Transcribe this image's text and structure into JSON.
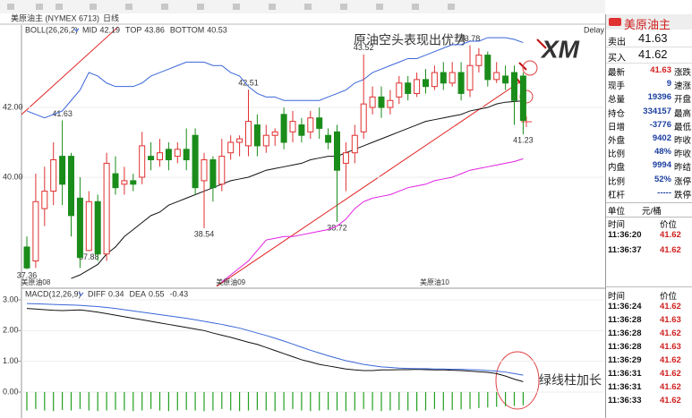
{
  "chart_data": [
    {
      "type": "candlestick",
      "title": "美原油主 (NYMEX 6713)",
      "period": "日线",
      "indicator": "BOLL(26,26,2)",
      "logo": "XM",
      "delay": "Delay",
      "annotation": "原油空头表现出优势",
      "up_color": "#e03030",
      "down_color": "#1a8c1a",
      "categories": [
        null,
        "美原油08",
        null,
        null,
        null,
        null,
        null,
        null,
        null,
        null,
        null,
        null,
        null,
        null,
        null,
        null,
        null,
        null,
        null,
        null,
        null,
        null,
        null,
        "美原油09",
        null,
        null,
        null,
        null,
        null,
        null,
        null,
        null,
        null,
        null,
        null,
        null,
        null,
        null,
        null,
        null,
        null,
        null,
        null,
        null,
        null,
        null,
        "美原油10",
        null,
        null,
        null,
        null,
        null,
        null,
        null,
        null,
        null,
        null
      ],
      "open": [
        38.0,
        37.6,
        39.1,
        39.6,
        40.6,
        40.6,
        39.4,
        37.9,
        39.3,
        37.8,
        40.1,
        39.8,
        39.9,
        40.0,
        40.6,
        40.5,
        40.8,
        40.6,
        40.8,
        41.2,
        39.9,
        40.5,
        39.8,
        40.7,
        41.0,
        40.9,
        41.5,
        40.9,
        41.2,
        41.8,
        41.3,
        41.5,
        41.3,
        41.7,
        41.2,
        41.3,
        40.4,
        40.7,
        41.3,
        42.0,
        42.3,
        42.0,
        42.3,
        42.7,
        42.4,
        42.8,
        42.6,
        43.0,
        42.7,
        43.0,
        42.5,
        43.2,
        43.5,
        42.8,
        42.9,
        43.0,
        42.9
      ],
      "high": [
        38.3,
        40.1,
        40.3,
        41.0,
        41.63,
        40.7,
        40.0,
        39.6,
        39.5,
        40.7,
        40.6,
        40.3,
        40.1,
        41.3,
        41.0,
        41.1,
        41.0,
        41.0,
        41.4,
        41.4,
        40.7,
        40.6,
        41.1,
        41.2,
        41.2,
        42.51,
        41.8,
        41.5,
        41.4,
        42.0,
        41.9,
        41.7,
        41.9,
        42.0,
        41.4,
        41.5,
        41.0,
        41.5,
        43.52,
        42.6,
        42.6,
        42.5,
        42.9,
        42.9,
        43.0,
        43.1,
        43.2,
        43.3,
        43.3,
        43.3,
        43.78,
        43.7,
        43.6,
        43.3,
        43.2,
        43.2,
        43.0
      ],
      "low": [
        37.36,
        37.4,
        38.6,
        39.2,
        39.2,
        38.3,
        37.4,
        37.88,
        37.6,
        37.6,
        39.5,
        39.5,
        39.6,
        39.8,
        40.2,
        40.3,
        40.2,
        40.4,
        40.2,
        39.5,
        38.54,
        39.3,
        39.6,
        40.5,
        40.6,
        40.6,
        40.6,
        40.7,
        40.9,
        40.8,
        41.0,
        41.0,
        41.1,
        41.1,
        40.8,
        38.72,
        39.6,
        40.4,
        41.1,
        41.8,
        41.7,
        41.8,
        42.1,
        42.2,
        42.3,
        42.4,
        42.5,
        42.5,
        42.6,
        42.2,
        42.3,
        43.0,
        42.6,
        42.7,
        42.5,
        41.5,
        41.23
      ],
      "close": [
        37.4,
        39.3,
        39.6,
        40.5,
        39.8,
        38.9,
        37.7,
        39.3,
        37.8,
        40.4,
        39.7,
        39.9,
        39.8,
        40.9,
        40.5,
        40.7,
        40.5,
        40.8,
        40.5,
        39.7,
        40.5,
        39.7,
        40.6,
        41.0,
        41.1,
        41.6,
        40.9,
        41.2,
        41.3,
        41.0,
        41.6,
        41.2,
        41.7,
        41.4,
        41.0,
        40.2,
        40.7,
        41.2,
        42.1,
        42.3,
        42.0,
        42.2,
        42.7,
        42.4,
        42.8,
        42.6,
        43.0,
        42.7,
        43.0,
        42.4,
        43.2,
        43.5,
        42.8,
        43.0,
        42.7,
        42.2,
        41.63
      ],
      "series": [
        {
          "name": "MID",
          "color": "#111111",
          "values": [
            null,
            null,
            null,
            null,
            null,
            37.1,
            37.2,
            37.35,
            37.5,
            37.8,
            38.0,
            38.3,
            38.5,
            38.7,
            38.9,
            39.0,
            39.2,
            39.3,
            39.4,
            39.5,
            39.6,
            39.7,
            39.8,
            39.9,
            39.95,
            40.0,
            40.1,
            40.2,
            40.25,
            40.3,
            40.35,
            40.4,
            40.5,
            40.55,
            40.6,
            40.6,
            40.7,
            40.8,
            40.9,
            41.0,
            41.1,
            41.2,
            41.3,
            41.4,
            41.5,
            41.6,
            41.65,
            41.7,
            41.75,
            41.8,
            41.9,
            41.95,
            42.0,
            42.1,
            42.15,
            42.17,
            42.19
          ]
        },
        {
          "name": "TOP",
          "color": "#3a66d8",
          "values": [
            41.9,
            41.8,
            41.7,
            41.8,
            41.9,
            42.2,
            42.5,
            43.0,
            42.9,
            42.7,
            42.6,
            42.6,
            42.6,
            42.7,
            42.9,
            43.0,
            43.1,
            43.2,
            43.3,
            43.3,
            43.3,
            43.2,
            43.2,
            43.0,
            42.9,
            42.6,
            42.4,
            42.3,
            42.3,
            42.2,
            42.2,
            42.2,
            42.2,
            42.2,
            42.3,
            42.4,
            42.5,
            42.7,
            42.8,
            43.0,
            43.1,
            43.2,
            43.3,
            43.4,
            43.4,
            43.5,
            43.6,
            43.7,
            43.8,
            43.8,
            43.9,
            43.9,
            44.0,
            44.0,
            44.0,
            43.95,
            43.86
          ]
        },
        {
          "name": "BOTTOM",
          "color": "#e020e0",
          "values": [
            null,
            null,
            null,
            null,
            null,
            null,
            null,
            null,
            null,
            null,
            null,
            null,
            null,
            null,
            null,
            null,
            null,
            null,
            null,
            null,
            null,
            null,
            37.0,
            37.2,
            37.4,
            37.6,
            37.9,
            38.2,
            38.25,
            38.3,
            38.3,
            38.35,
            38.4,
            38.45,
            38.5,
            38.6,
            38.8,
            39.1,
            39.3,
            39.4,
            39.45,
            39.5,
            39.6,
            39.7,
            39.75,
            39.8,
            39.9,
            39.95,
            40.0,
            40.1,
            40.2,
            40.25,
            40.3,
            40.35,
            40.4,
            40.45,
            40.53
          ]
        }
      ],
      "ylim": [
        36.87,
        44.31
      ],
      "yticks": [
        {
          "value": 40,
          "label": "40.00"
        },
        {
          "value": 42,
          "label": "42.00"
        }
      ]
    },
    {
      "type": "macd",
      "annotation": "绿线柱加长",
      "histogram": {
        "name": "MACD(12,26,9)",
        "color": "#22a022",
        "values": [
          -0.6,
          -0.55,
          -0.6,
          -0.62,
          -0.58,
          -0.6,
          -0.55,
          -0.6,
          -0.62,
          -0.6,
          -0.58,
          -0.6,
          -0.62,
          -0.6,
          -0.55,
          -0.6,
          -0.62,
          -0.6,
          -0.58,
          -0.6,
          -0.62,
          -0.6,
          -0.55,
          -0.6,
          -0.62,
          -0.6,
          -0.58,
          -0.6,
          -0.62,
          -0.6,
          -0.55,
          -0.6,
          -0.62,
          -0.6,
          -0.58,
          -0.6,
          -0.62,
          -0.6,
          -0.55,
          -0.6,
          -0.62,
          -0.6,
          -0.58,
          -0.6,
          -0.62,
          -0.6,
          -0.55,
          -0.6,
          -0.58,
          -0.56,
          -0.55,
          -0.52,
          -0.5,
          -0.48,
          -0.46,
          -0.45,
          -0.43
        ]
      },
      "series": [
        {
          "name": "DIFF",
          "color": "#111111",
          "values": [
            2.72,
            2.7,
            2.68,
            2.66,
            2.65,
            2.66,
            2.67,
            2.64,
            2.6,
            2.55,
            2.5,
            2.45,
            2.4,
            2.35,
            2.3,
            2.25,
            2.2,
            2.15,
            2.1,
            2.05,
            2.0,
            1.92,
            1.85,
            1.78,
            1.7,
            1.62,
            1.55,
            1.45,
            1.35,
            1.25,
            1.15,
            1.05,
            0.98,
            0.9,
            0.85,
            0.8,
            0.75,
            0.72,
            0.7,
            0.7,
            0.72,
            0.72,
            0.73,
            0.73,
            0.74,
            0.73,
            0.72,
            0.72,
            0.71,
            0.7,
            0.68,
            0.66,
            0.64,
            0.6,
            0.52,
            0.42,
            0.34
          ]
        },
        {
          "name": "DEA",
          "color": "#3a66d8",
          "values": [
            2.88,
            2.87,
            2.86,
            2.85,
            2.84,
            2.83,
            2.82,
            2.8,
            2.78,
            2.75,
            2.72,
            2.68,
            2.64,
            2.6,
            2.56,
            2.52,
            2.48,
            2.44,
            2.4,
            2.35,
            2.3,
            2.25,
            2.2,
            2.14,
            2.08,
            2.0,
            1.92,
            1.84,
            1.75,
            1.66,
            1.56,
            1.46,
            1.36,
            1.27,
            1.18,
            1.1,
            1.02,
            0.96,
            0.9,
            0.86,
            0.82,
            0.8,
            0.78,
            0.77,
            0.76,
            0.76,
            0.75,
            0.75,
            0.74,
            0.74,
            0.73,
            0.72,
            0.7,
            0.68,
            0.65,
            0.6,
            0.55
          ]
        }
      ],
      "ylim": [
        -0.64,
        3.29
      ],
      "yticks": [
        {
          "value": 0,
          "label": "0.00"
        },
        {
          "value": 1,
          "label": "1.00"
        },
        {
          "value": 2,
          "label": "2.00"
        },
        {
          "value": 3,
          "label": "3.00"
        }
      ]
    }
  ],
  "side_panel": {
    "title": "美原油主",
    "quote": [
      {
        "label": "卖出",
        "value": "41.63"
      },
      {
        "label": "买入",
        "value": "41.62"
      }
    ],
    "stats": [
      [
        "最新",
        "41.63",
        "涨跌"
      ],
      [
        "现手",
        "9",
        "速涨"
      ],
      [
        "总量",
        "19396",
        "开盘"
      ],
      [
        "持仓",
        "334157",
        "最高"
      ],
      [
        "日增",
        "-3776",
        "最低"
      ],
      [
        "外盘",
        "9402",
        "昨收"
      ],
      [
        "比例",
        "48%",
        "昨收"
      ],
      [
        "内盘",
        "9994",
        "昨结"
      ],
      [
        "比例",
        "52%",
        "涨停"
      ],
      [
        "杠杆",
        "-----",
        "跌停"
      ]
    ],
    "unit": [
      "单位",
      "元/桶"
    ],
    "ticks_top": {
      "header": [
        "时间",
        "价位"
      ],
      "rows": [
        [
          "11:36:20",
          "41.62"
        ],
        [
          "11:36:37",
          "41.62"
        ]
      ]
    },
    "ticks_bottom": {
      "header": [
        "时间",
        "价位"
      ],
      "rows": [
        [
          "11:36:24",
          "41.62"
        ],
        [
          "11:36:28",
          "41.63"
        ],
        [
          "11:36:28",
          "41.62"
        ],
        [
          "11:36:28",
          "41.63"
        ],
        [
          "11:36:29",
          "41.62"
        ],
        [
          "11:36:31",
          "41.62"
        ],
        [
          "11:36:31",
          "41.62"
        ],
        [
          "11:36:33",
          "41.62"
        ]
      ]
    }
  }
}
